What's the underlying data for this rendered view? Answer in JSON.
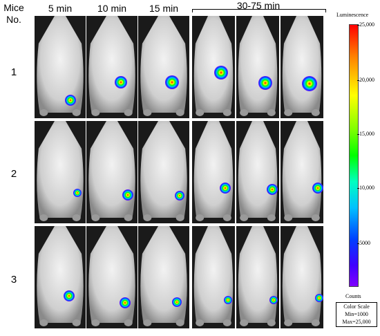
{
  "header": {
    "mice_label_line1": "Mice",
    "mice_label_line2": "No.",
    "times": [
      "5 min",
      "10 min",
      "15 min",
      "30-75 min"
    ]
  },
  "rows": [
    {
      "label": "1"
    },
    {
      "label": "2"
    },
    {
      "label": "3"
    }
  ],
  "colorbar": {
    "title": "Luminescence",
    "ticks": [
      "25,000",
      "20,000",
      "15,000",
      "10,000",
      "5000"
    ],
    "units": "Counts",
    "scale_title": "Color Scale",
    "min_text": "Min=1000",
    "max_text": "Max=25,000",
    "colors": [
      "#ff0000",
      "#ffff00",
      "#00ff00",
      "#00c0ff",
      "#0040ff",
      "#8000ff"
    ]
  }
}
